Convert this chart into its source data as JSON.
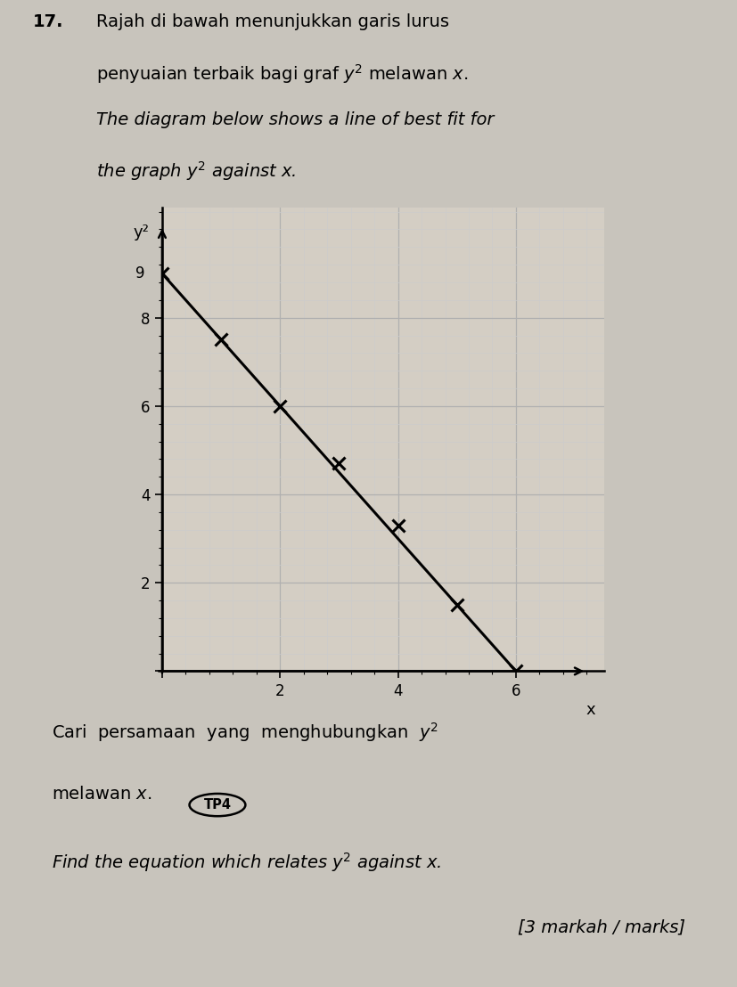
{
  "xlabel": "x",
  "ylabel": "y²",
  "xlim": [
    0,
    7.5
  ],
  "ylim": [
    0,
    10.5
  ],
  "xticks": [
    2,
    4,
    6
  ],
  "yticks": [
    2,
    4,
    6,
    8
  ],
  "y_intercept_label": "9",
  "line_x": [
    0,
    6
  ],
  "line_y": [
    9,
    0
  ],
  "data_points_x": [
    0,
    1,
    2,
    3.0,
    4.0,
    5.0,
    6.0
  ],
  "data_points_y": [
    9,
    7.5,
    6,
    4.7,
    3.3,
    1.5,
    0
  ],
  "grid_major_color": "#b0b0b0",
  "grid_minor_color": "#cccccc",
  "line_color": "#000000",
  "marker_color": "#000000",
  "graph_bg_color": "#d4cec4",
  "axes_color": "#000000",
  "text_color": "#000000",
  "fig_bg_color": "#c8c4bc",
  "q_num": "17.",
  "malay_line1": "Rajah di bawah menunjukkan garis lurus",
  "malay_line2": "penyuaian terbaik bagi graf $y^2$ melawan $x$.",
  "eng_line1": "The diagram below shows a line of best fit for",
  "eng_line2": "the graph $y^2$ against $x$.",
  "bot_malay1": "Cari  persamaan  yang  menghubungkan  $y^2$",
  "bot_malay2": "melawan $x$.",
  "bot_tp": "TP4",
  "bot_eng": "Find the equation which relates $y^2$ against $x$.",
  "bot_marks": "[3 markah / marks]"
}
